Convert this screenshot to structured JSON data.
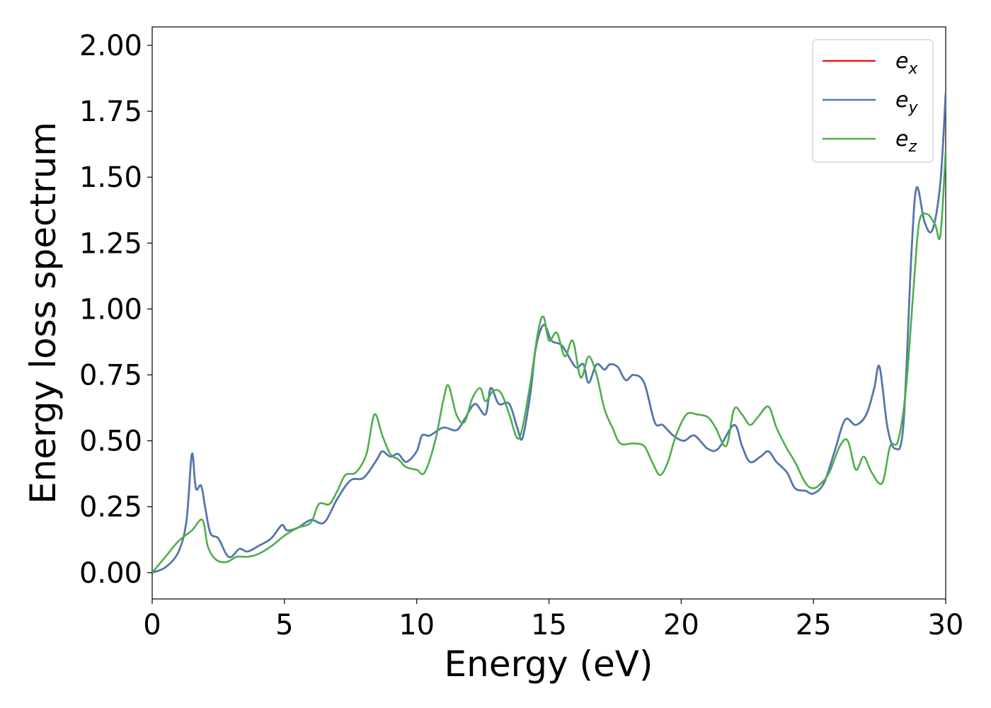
{
  "chart_data": {
    "type": "line",
    "title": "",
    "xlabel": "Energy (eV)",
    "ylabel": "Energy loss spectrum",
    "xlim": [
      0,
      30
    ],
    "ylim": [
      -0.1,
      2.07
    ],
    "x_ticks": [
      "0",
      "5",
      "10",
      "15",
      "20",
      "25",
      "30"
    ],
    "x_tick_values": [
      0,
      5,
      10,
      15,
      20,
      25,
      30
    ],
    "y_ticks": [
      "0.00",
      "0.25",
      "0.50",
      "0.75",
      "1.00",
      "1.25",
      "1.50",
      "1.75",
      "2.00"
    ],
    "y_tick_values": [
      0,
      0.25,
      0.5,
      0.75,
      1.0,
      1.25,
      1.5,
      1.75,
      2.0
    ],
    "grid": false,
    "legend_position": "top-right",
    "series": [
      {
        "name": "e_x",
        "legend_base": "e",
        "legend_sub": "x",
        "color": "#e41a1c",
        "points": [
          [
            0,
            0
          ],
          [
            0.5,
            0.02
          ],
          [
            1.0,
            0.08
          ],
          [
            1.3,
            0.2
          ],
          [
            1.5,
            0.45
          ],
          [
            1.65,
            0.32
          ],
          [
            1.85,
            0.33
          ],
          [
            2.0,
            0.25
          ],
          [
            2.2,
            0.15
          ],
          [
            2.5,
            0.13
          ],
          [
            2.8,
            0.07
          ],
          [
            3.0,
            0.06
          ],
          [
            3.3,
            0.09
          ],
          [
            3.6,
            0.08
          ],
          [
            4.0,
            0.1
          ],
          [
            4.5,
            0.13
          ],
          [
            4.9,
            0.18
          ],
          [
            5.1,
            0.16
          ],
          [
            5.5,
            0.17
          ],
          [
            6.0,
            0.2
          ],
          [
            6.5,
            0.19
          ],
          [
            7.0,
            0.28
          ],
          [
            7.5,
            0.35
          ],
          [
            8.0,
            0.36
          ],
          [
            8.5,
            0.43
          ],
          [
            8.7,
            0.46
          ],
          [
            9.0,
            0.44
          ],
          [
            9.3,
            0.45
          ],
          [
            9.6,
            0.42
          ],
          [
            10.0,
            0.46
          ],
          [
            10.2,
            0.52
          ],
          [
            10.5,
            0.52
          ],
          [
            11.0,
            0.55
          ],
          [
            11.5,
            0.54
          ],
          [
            11.8,
            0.58
          ],
          [
            12.2,
            0.64
          ],
          [
            12.6,
            0.6
          ],
          [
            12.8,
            0.7
          ],
          [
            13.1,
            0.64
          ],
          [
            13.5,
            0.64
          ],
          [
            13.8,
            0.55
          ],
          [
            14.0,
            0.51
          ],
          [
            14.3,
            0.68
          ],
          [
            14.5,
            0.85
          ],
          [
            14.8,
            0.94
          ],
          [
            15.1,
            0.88
          ],
          [
            15.5,
            0.86
          ],
          [
            16.0,
            0.78
          ],
          [
            16.3,
            0.79
          ],
          [
            16.5,
            0.72
          ],
          [
            16.8,
            0.79
          ],
          [
            17.1,
            0.77
          ],
          [
            17.3,
            0.79
          ],
          [
            17.6,
            0.78
          ],
          [
            17.9,
            0.73
          ],
          [
            18.2,
            0.75
          ],
          [
            18.6,
            0.72
          ],
          [
            19.0,
            0.57
          ],
          [
            19.3,
            0.56
          ],
          [
            19.7,
            0.52
          ],
          [
            20.1,
            0.5
          ],
          [
            20.5,
            0.52
          ],
          [
            21.0,
            0.47
          ],
          [
            21.4,
            0.47
          ],
          [
            22.0,
            0.56
          ],
          [
            22.3,
            0.48
          ],
          [
            22.6,
            0.42
          ],
          [
            23.0,
            0.44
          ],
          [
            23.3,
            0.46
          ],
          [
            23.6,
            0.42
          ],
          [
            24.0,
            0.38
          ],
          [
            24.3,
            0.32
          ],
          [
            24.7,
            0.31
          ],
          [
            25.0,
            0.3
          ],
          [
            25.4,
            0.34
          ],
          [
            25.8,
            0.46
          ],
          [
            26.2,
            0.58
          ],
          [
            26.6,
            0.56
          ],
          [
            27.0,
            0.6
          ],
          [
            27.3,
            0.7
          ],
          [
            27.5,
            0.78
          ],
          [
            27.8,
            0.55
          ],
          [
            28.1,
            0.47
          ],
          [
            28.4,
            0.56
          ],
          [
            28.7,
            1.2
          ],
          [
            28.9,
            1.46
          ],
          [
            29.2,
            1.33
          ],
          [
            29.5,
            1.3
          ],
          [
            29.8,
            1.48
          ],
          [
            30.0,
            1.82
          ]
        ]
      },
      {
        "name": "e_y",
        "legend_base": "e",
        "legend_sub": "y",
        "color": "#4a7ab5",
        "points": [
          [
            0,
            0
          ],
          [
            0.5,
            0.02
          ],
          [
            1.0,
            0.08
          ],
          [
            1.3,
            0.2
          ],
          [
            1.5,
            0.45
          ],
          [
            1.65,
            0.32
          ],
          [
            1.85,
            0.33
          ],
          [
            2.0,
            0.25
          ],
          [
            2.2,
            0.15
          ],
          [
            2.5,
            0.13
          ],
          [
            2.8,
            0.07
          ],
          [
            3.0,
            0.06
          ],
          [
            3.3,
            0.09
          ],
          [
            3.6,
            0.08
          ],
          [
            4.0,
            0.1
          ],
          [
            4.5,
            0.13
          ],
          [
            4.9,
            0.18
          ],
          [
            5.1,
            0.16
          ],
          [
            5.5,
            0.17
          ],
          [
            6.0,
            0.2
          ],
          [
            6.5,
            0.19
          ],
          [
            7.0,
            0.28
          ],
          [
            7.5,
            0.35
          ],
          [
            8.0,
            0.36
          ],
          [
            8.5,
            0.43
          ],
          [
            8.7,
            0.46
          ],
          [
            9.0,
            0.44
          ],
          [
            9.3,
            0.45
          ],
          [
            9.6,
            0.42
          ],
          [
            10.0,
            0.46
          ],
          [
            10.2,
            0.52
          ],
          [
            10.5,
            0.52
          ],
          [
            11.0,
            0.55
          ],
          [
            11.5,
            0.54
          ],
          [
            11.8,
            0.58
          ],
          [
            12.2,
            0.64
          ],
          [
            12.6,
            0.6
          ],
          [
            12.8,
            0.7
          ],
          [
            13.1,
            0.64
          ],
          [
            13.5,
            0.64
          ],
          [
            13.8,
            0.55
          ],
          [
            14.0,
            0.51
          ],
          [
            14.3,
            0.68
          ],
          [
            14.5,
            0.85
          ],
          [
            14.8,
            0.94
          ],
          [
            15.1,
            0.88
          ],
          [
            15.5,
            0.86
          ],
          [
            16.0,
            0.78
          ],
          [
            16.3,
            0.79
          ],
          [
            16.5,
            0.72
          ],
          [
            16.8,
            0.79
          ],
          [
            17.1,
            0.77
          ],
          [
            17.3,
            0.79
          ],
          [
            17.6,
            0.78
          ],
          [
            17.9,
            0.73
          ],
          [
            18.2,
            0.75
          ],
          [
            18.6,
            0.72
          ],
          [
            19.0,
            0.57
          ],
          [
            19.3,
            0.56
          ],
          [
            19.7,
            0.52
          ],
          [
            20.1,
            0.5
          ],
          [
            20.5,
            0.52
          ],
          [
            21.0,
            0.47
          ],
          [
            21.4,
            0.47
          ],
          [
            22.0,
            0.56
          ],
          [
            22.3,
            0.48
          ],
          [
            22.6,
            0.42
          ],
          [
            23.0,
            0.44
          ],
          [
            23.3,
            0.46
          ],
          [
            23.6,
            0.42
          ],
          [
            24.0,
            0.38
          ],
          [
            24.3,
            0.32
          ],
          [
            24.7,
            0.31
          ],
          [
            25.0,
            0.3
          ],
          [
            25.4,
            0.34
          ],
          [
            25.8,
            0.46
          ],
          [
            26.2,
            0.58
          ],
          [
            26.6,
            0.56
          ],
          [
            27.0,
            0.6
          ],
          [
            27.3,
            0.7
          ],
          [
            27.5,
            0.78
          ],
          [
            27.8,
            0.55
          ],
          [
            28.1,
            0.47
          ],
          [
            28.4,
            0.56
          ],
          [
            28.7,
            1.2
          ],
          [
            28.9,
            1.46
          ],
          [
            29.2,
            1.33
          ],
          [
            29.5,
            1.3
          ],
          [
            29.8,
            1.48
          ],
          [
            30.0,
            1.82
          ]
        ]
      },
      {
        "name": "e_z",
        "legend_base": "e",
        "legend_sub": "z",
        "color": "#4daf4a",
        "points": [
          [
            0,
            0
          ],
          [
            0.5,
            0.06
          ],
          [
            1.0,
            0.12
          ],
          [
            1.5,
            0.16
          ],
          [
            1.9,
            0.2
          ],
          [
            2.1,
            0.1
          ],
          [
            2.4,
            0.05
          ],
          [
            2.8,
            0.04
          ],
          [
            3.2,
            0.06
          ],
          [
            3.6,
            0.06
          ],
          [
            4.0,
            0.07
          ],
          [
            4.5,
            0.1
          ],
          [
            5.0,
            0.14
          ],
          [
            5.5,
            0.17
          ],
          [
            6.0,
            0.19
          ],
          [
            6.3,
            0.26
          ],
          [
            6.7,
            0.26
          ],
          [
            7.0,
            0.31
          ],
          [
            7.3,
            0.37
          ],
          [
            7.7,
            0.38
          ],
          [
            8.1,
            0.45
          ],
          [
            8.4,
            0.6
          ],
          [
            8.7,
            0.52
          ],
          [
            9.0,
            0.45
          ],
          [
            9.3,
            0.43
          ],
          [
            9.6,
            0.4
          ],
          [
            10.0,
            0.39
          ],
          [
            10.3,
            0.38
          ],
          [
            10.7,
            0.5
          ],
          [
            11.0,
            0.65
          ],
          [
            11.2,
            0.71
          ],
          [
            11.5,
            0.6
          ],
          [
            11.8,
            0.57
          ],
          [
            12.1,
            0.66
          ],
          [
            12.4,
            0.7
          ],
          [
            12.6,
            0.65
          ],
          [
            12.9,
            0.69
          ],
          [
            13.2,
            0.68
          ],
          [
            13.5,
            0.6
          ],
          [
            13.8,
            0.51
          ],
          [
            14.0,
            0.55
          ],
          [
            14.3,
            0.72
          ],
          [
            14.6,
            0.92
          ],
          [
            14.8,
            0.97
          ],
          [
            15.0,
            0.88
          ],
          [
            15.3,
            0.91
          ],
          [
            15.6,
            0.82
          ],
          [
            15.9,
            0.88
          ],
          [
            16.2,
            0.74
          ],
          [
            16.5,
            0.82
          ],
          [
            16.8,
            0.75
          ],
          [
            17.1,
            0.62
          ],
          [
            17.4,
            0.55
          ],
          [
            17.7,
            0.49
          ],
          [
            18.2,
            0.49
          ],
          [
            18.6,
            0.48
          ],
          [
            18.9,
            0.42
          ],
          [
            19.2,
            0.37
          ],
          [
            19.5,
            0.42
          ],
          [
            19.8,
            0.52
          ],
          [
            20.2,
            0.6
          ],
          [
            20.6,
            0.6
          ],
          [
            21.0,
            0.59
          ],
          [
            21.3,
            0.55
          ],
          [
            21.7,
            0.48
          ],
          [
            22.0,
            0.62
          ],
          [
            22.3,
            0.6
          ],
          [
            22.6,
            0.56
          ],
          [
            22.9,
            0.59
          ],
          [
            23.3,
            0.63
          ],
          [
            23.6,
            0.55
          ],
          [
            24.0,
            0.47
          ],
          [
            24.3,
            0.42
          ],
          [
            24.7,
            0.34
          ],
          [
            25.0,
            0.32
          ],
          [
            25.3,
            0.34
          ],
          [
            25.6,
            0.38
          ],
          [
            26.0,
            0.48
          ],
          [
            26.3,
            0.5
          ],
          [
            26.6,
            0.39
          ],
          [
            26.9,
            0.44
          ],
          [
            27.2,
            0.38
          ],
          [
            27.6,
            0.34
          ],
          [
            27.9,
            0.48
          ],
          [
            28.2,
            0.5
          ],
          [
            28.5,
            0.7
          ],
          [
            28.8,
            1.1
          ],
          [
            29.0,
            1.33
          ],
          [
            29.3,
            1.36
          ],
          [
            29.6,
            1.32
          ],
          [
            29.8,
            1.28
          ],
          [
            30.0,
            1.6
          ]
        ]
      }
    ]
  }
}
